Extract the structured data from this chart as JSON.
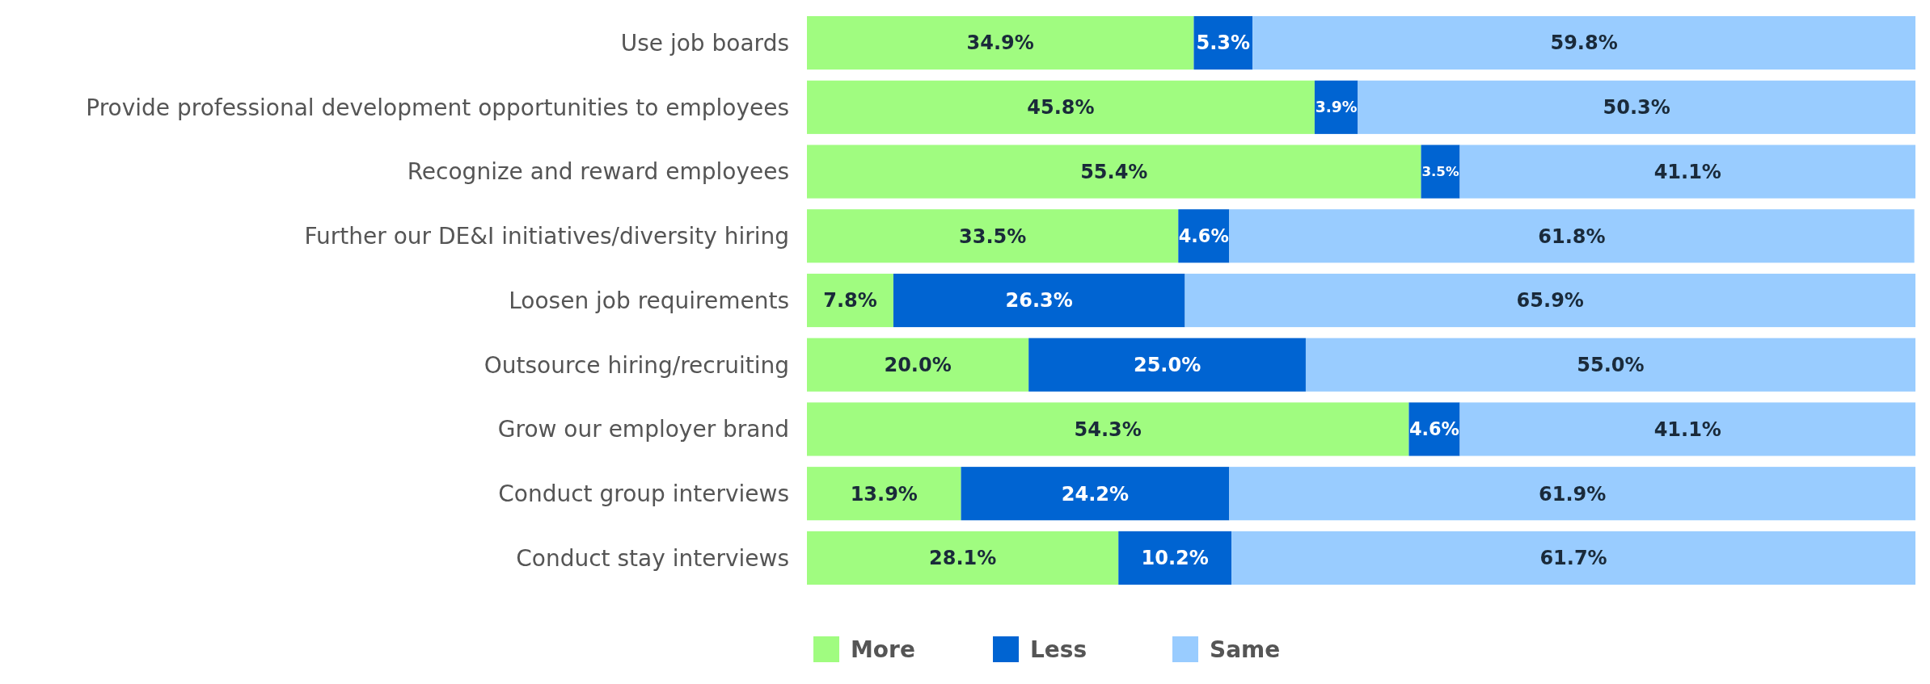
{
  "chart_data": {
    "type": "bar",
    "orientation": "horizontal",
    "stacked": true,
    "legend": "bottom",
    "tick_labels": false,
    "xlim": [
      0,
      100
    ],
    "categories": [
      "Use job boards",
      "Provide professional development opportunities to employees",
      "Recognize and reward employees",
      "Further our DE&I initiatives/diversity hiring",
      "Loosen job requirements",
      "Outsource hiring/recruiting",
      "Grow our employer brand",
      "Conduct group interviews",
      "Conduct stay interviews"
    ],
    "series": [
      {
        "name": "More",
        "color": "#a0fc80",
        "values": [
          34.9,
          45.8,
          55.4,
          33.5,
          7.8,
          20.0,
          54.3,
          13.9,
          28.1
        ],
        "value_labels": [
          "34.9%",
          "45.8%",
          "55.4%",
          "33.5%",
          "7.8%",
          "20.0%",
          "54.3%",
          "13.9%",
          "28.1%"
        ]
      },
      {
        "name": "Less",
        "color": "#0064d2",
        "values": [
          5.3,
          3.9,
          3.5,
          4.6,
          26.3,
          25.0,
          4.6,
          24.2,
          10.2
        ],
        "value_labels": [
          "5.3%",
          "3.9%",
          "3.5%",
          "4.6%",
          "26.3%",
          "25.0%",
          "4.6%",
          "24.2%",
          "10.2%"
        ]
      },
      {
        "name": "Same",
        "color": "#99ccff",
        "values": [
          59.8,
          50.3,
          41.1,
          61.8,
          65.9,
          55.0,
          41.1,
          61.9,
          61.7
        ],
        "value_labels": [
          "59.8%",
          "50.3%",
          "41.1%",
          "61.8%",
          "65.9%",
          "55.0%",
          "41.1%",
          "61.9%",
          "61.7%"
        ]
      }
    ]
  }
}
